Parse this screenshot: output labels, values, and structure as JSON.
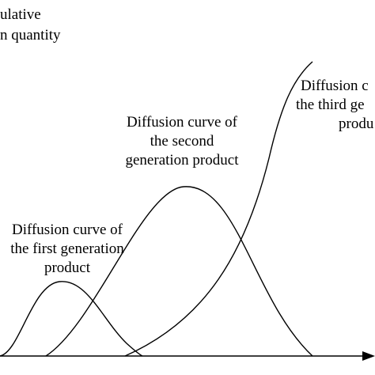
{
  "axis": {
    "y_label_line1": "ulative",
    "y_label_line2": "n quantity"
  },
  "labels": {
    "first": {
      "line1": "Diffusion curve of",
      "line2": "the first generation",
      "line3": "product"
    },
    "second": {
      "line1": "Diffusion curve of",
      "line2": "the second",
      "line3": "generation product"
    },
    "third": {
      "line1": "Diffusion c",
      "line2": "the third ge",
      "line3": "produ"
    }
  },
  "colors": {
    "stroke": "#000000",
    "background": "#ffffff"
  }
}
